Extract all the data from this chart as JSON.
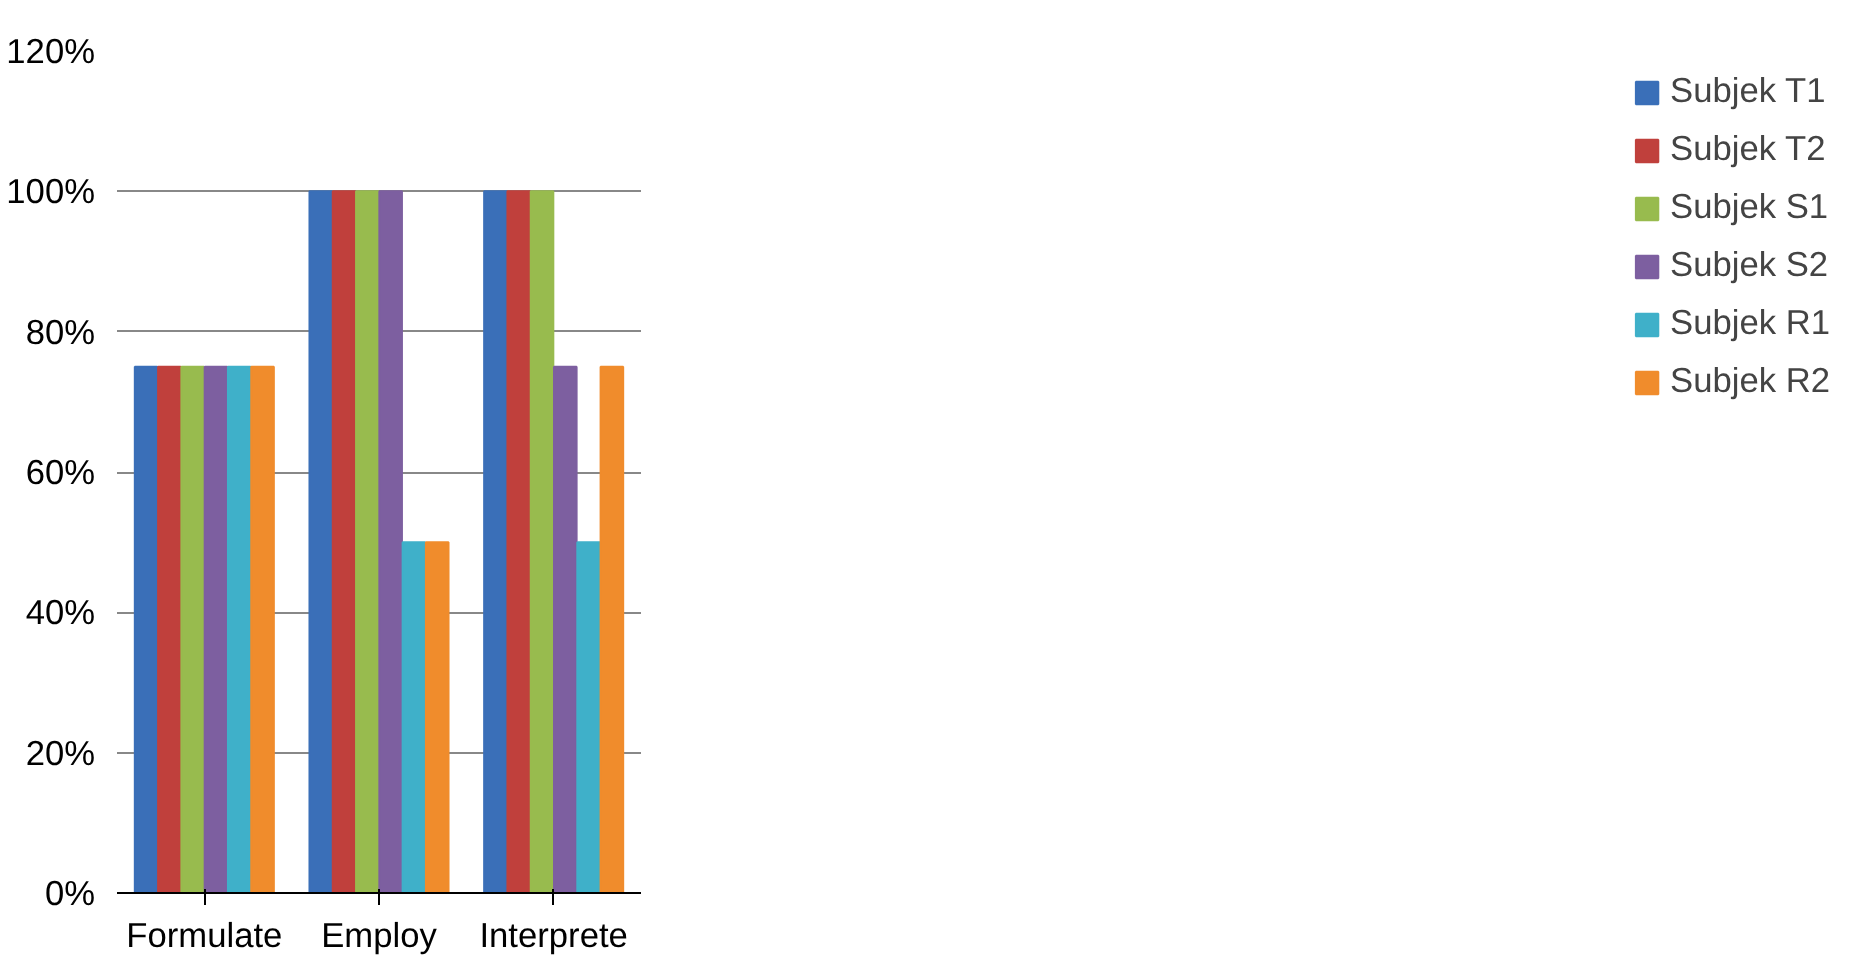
{
  "chart_data": {
    "type": "bar",
    "categories": [
      "Formulate",
      "Employ",
      "Interprete"
    ],
    "series": [
      {
        "name": "Subjek T1",
        "color": "#3a6fb8",
        "values": [
          75,
          100,
          100
        ]
      },
      {
        "name": "Subjek T2",
        "color": "#c0403c",
        "values": [
          75,
          100,
          100
        ]
      },
      {
        "name": "Subjek S1",
        "color": "#98bb4e",
        "values": [
          75,
          100,
          100
        ]
      },
      {
        "name": "Subjek S2",
        "color": "#7d5fa0",
        "values": [
          75,
          100,
          75
        ]
      },
      {
        "name": "Subjek R1",
        "color": "#3fb0c9",
        "values": [
          75,
          50,
          50
        ]
      },
      {
        "name": "Subjek R2",
        "color": "#f08c2c",
        "values": [
          75,
          50,
          75
        ]
      }
    ],
    "ylim": [
      0,
      120
    ],
    "yticks": [
      {
        "value": 0,
        "label": "0%"
      },
      {
        "value": 20,
        "label": "20%"
      },
      {
        "value": 40,
        "label": "40%"
      },
      {
        "value": 60,
        "label": "60%"
      },
      {
        "value": 80,
        "label": "80%"
      },
      {
        "value": 100,
        "label": "100%"
      },
      {
        "value": 120,
        "label": "120%"
      }
    ],
    "grid": "y",
    "legend": "right"
  }
}
